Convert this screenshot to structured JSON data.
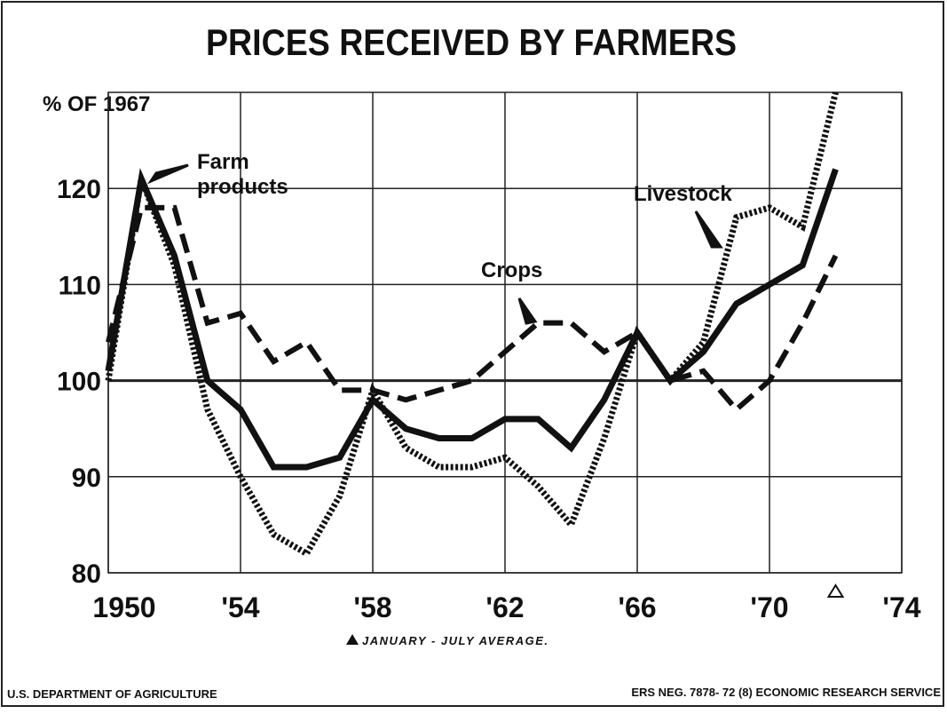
{
  "chart_data": {
    "type": "line",
    "title": "PRICES RECEIVED BY FARMERS",
    "y_label": "% OF 1967",
    "x": [
      1950,
      1951,
      1952,
      1953,
      1954,
      1955,
      1956,
      1957,
      1958,
      1959,
      1960,
      1961,
      1962,
      1963,
      1964,
      1965,
      1966,
      1967,
      1968,
      1969,
      1970,
      1971,
      1972
    ],
    "series": [
      {
        "name": "Farm products",
        "color": "#111111",
        "style": "solid",
        "values": [
          101,
          121,
          113,
          100,
          97,
          91,
          91,
          92,
          98,
          95,
          94,
          94,
          96,
          96,
          93,
          98,
          105,
          100,
          103,
          108,
          110,
          112,
          122
        ]
      },
      {
        "name": "Crops",
        "color": "#111111",
        "style": "dashed",
        "values": [
          104,
          118,
          118,
          106,
          107,
          102,
          104,
          99,
          99,
          98,
          99,
          100,
          103,
          106,
          106,
          103,
          105,
          100,
          101,
          97,
          100,
          106,
          113
        ]
      },
      {
        "name": "Livestock",
        "color": "#111111",
        "style": "dotted",
        "values": [
          100,
          121,
          112,
          97,
          90,
          84,
          82,
          88,
          99,
          93,
          91,
          91,
          92,
          89,
          85,
          94,
          105,
          100,
          104,
          117,
          118,
          116,
          130
        ]
      }
    ],
    "xlim": [
      1950,
      1974
    ],
    "xticks": [
      {
        "value": 1950,
        "label": "1950"
      },
      {
        "value": 1954,
        "label": "'54"
      },
      {
        "value": 1958,
        "label": "'58"
      },
      {
        "value": 1962,
        "label": "'62"
      },
      {
        "value": 1966,
        "label": "'66"
      },
      {
        "value": 1970,
        "label": "'70"
      },
      {
        "value": 1974,
        "label": "'74"
      }
    ],
    "ylim": [
      80,
      130
    ],
    "yticks": [
      80,
      90,
      100,
      110,
      120
    ],
    "grid": true,
    "footnote": "JANUARY - JULY AVERAGE.",
    "source_left": "U.S. DEPARTMENT OF AGRICULTURE",
    "source_right": "ERS NEG. 7878- 72 (8) ECONOMIC RESEARCH SERVICE"
  }
}
